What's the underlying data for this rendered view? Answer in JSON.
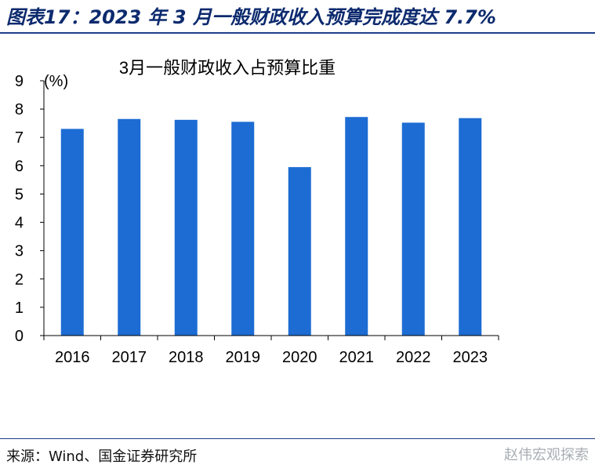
{
  "figure_title": "图表17：2023 年 3 月一般财政收入预算完成度达 7.7%",
  "source_text": "来源：Wind、国金证券研究所",
  "watermark_text": "赵伟宏观探索",
  "colors": {
    "bar": "#1c6cd3",
    "axis": "#000000",
    "title_text": "#0c2a6e",
    "rule": "#1f3f8a"
  },
  "chart_data": {
    "type": "bar",
    "title": "3月一般财政收入占预算比重",
    "unit_label": "(%)",
    "xlabel": "",
    "ylabel": "",
    "categories": [
      "2016",
      "2017",
      "2018",
      "2019",
      "2020",
      "2021",
      "2022",
      "2023"
    ],
    "values": [
      7.3,
      7.65,
      7.62,
      7.55,
      5.95,
      7.72,
      7.52,
      7.68
    ],
    "ylim": [
      0,
      9
    ],
    "yticks": [
      0,
      1,
      2,
      3,
      4,
      5,
      6,
      7,
      8,
      9
    ],
    "grid": false,
    "legend": "none"
  }
}
